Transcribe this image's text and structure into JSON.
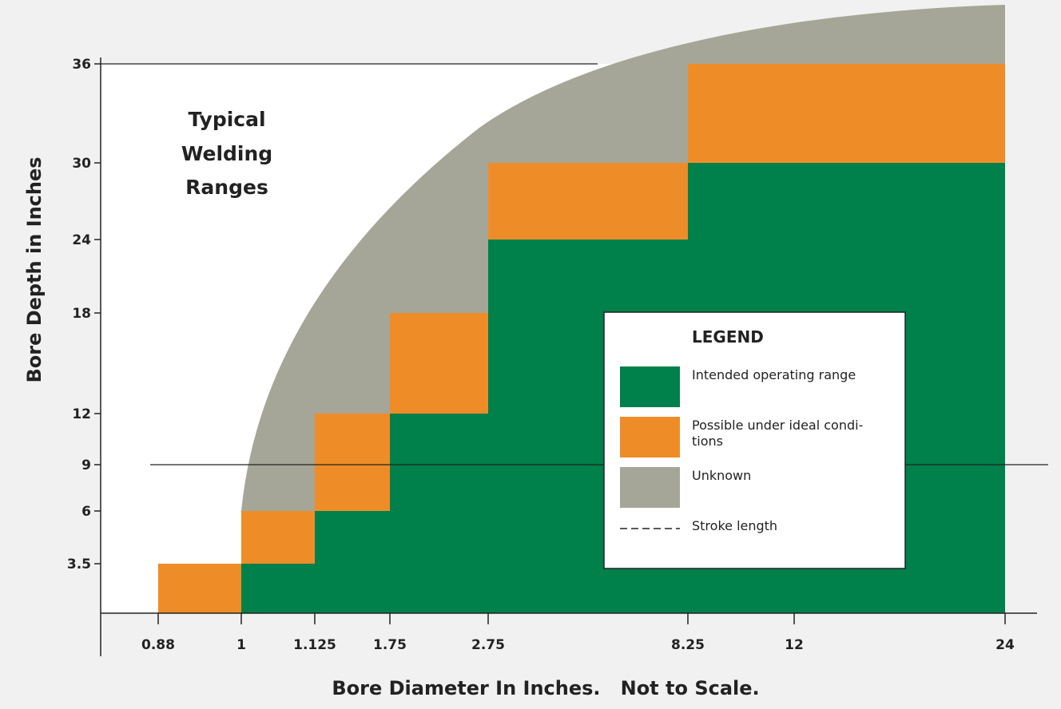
{
  "chart_data": {
    "type": "area",
    "title_lines": [
      "Typical",
      "Welding",
      "Ranges"
    ],
    "xlabel": "Bore Diameter In Inches.   Not to Scale.",
    "ylabel": "Bore Depth in Inches",
    "x_ticks": [
      "0.88",
      "1",
      "1.125",
      "1.75",
      "2.75",
      "8.25",
      "12",
      "24"
    ],
    "y_ticks": [
      "3.5",
      "6",
      "9",
      "12",
      "18",
      "24",
      "30",
      "36"
    ],
    "colors": {
      "intended": "#00804a",
      "possible": "#ee8d28",
      "unknown": "#a5a697",
      "background": "#f1f1f1"
    },
    "series": [
      {
        "name": "Intended operating range",
        "color": "#00804a",
        "steps": [
          {
            "x_from": "1",
            "x_to": "1.125",
            "depth": 3.5
          },
          {
            "x_from": "1.125",
            "x_to": "1.75",
            "depth": 6
          },
          {
            "x_from": "1.75",
            "x_to": "2.75",
            "depth": 12
          },
          {
            "x_from": "2.75",
            "x_to": "8.25",
            "depth": 24
          },
          {
            "x_from": "8.25",
            "x_to": "24",
            "depth": 30
          }
        ]
      },
      {
        "name": "Possible under ideal conditions",
        "color": "#ee8d28",
        "steps": [
          {
            "x_from": "0.88",
            "x_to": "1",
            "depth_from": 0,
            "depth_to": 3.5
          },
          {
            "x_from": "1",
            "x_to": "1.125",
            "depth_from": 3.5,
            "depth_to": 6
          },
          {
            "x_from": "1.125",
            "x_to": "1.75",
            "depth_from": 6,
            "depth_to": 12
          },
          {
            "x_from": "1.75",
            "x_to": "2.75",
            "depth_from": 12,
            "depth_to": 18
          },
          {
            "x_from": "2.75",
            "x_to": "8.25",
            "depth_from": 24,
            "depth_to": 30
          },
          {
            "x_from": "8.25",
            "x_to": "24",
            "depth_from": 30,
            "depth_to": 36
          }
        ]
      },
      {
        "name": "Unknown",
        "color": "#a5a697",
        "note_boundary": "curved envelope rising from 1 in. at 6 in. depth to above 36 in. at 24 in."
      }
    ],
    "reference_lines": [
      {
        "name": "Stroke length",
        "y": 9
      },
      {
        "y": 36
      }
    ],
    "legend": {
      "title": "LEGEND",
      "placement": "lower-right",
      "items": [
        {
          "label_lines": [
            "Intended operating range"
          ],
          "color": "#00804a",
          "kind": "swatch"
        },
        {
          "label_lines": [
            "Possible under ideal condi-",
            "tions"
          ],
          "color": "#ee8d28",
          "kind": "swatch"
        },
        {
          "label_lines": [
            "Unknown"
          ],
          "color": "#a5a697",
          "kind": "swatch"
        },
        {
          "label_lines": [
            "Stroke length"
          ],
          "color": "#222222",
          "kind": "dash"
        }
      ]
    }
  }
}
